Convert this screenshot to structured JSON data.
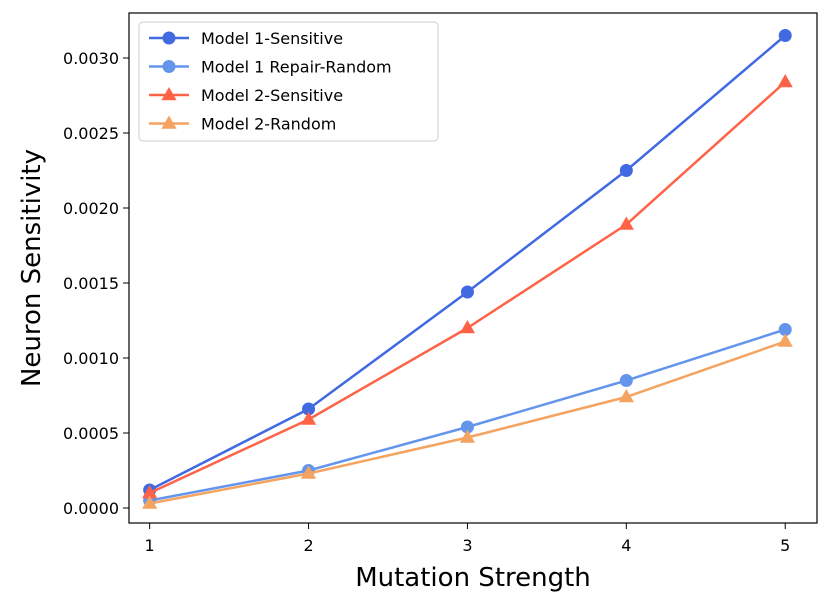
{
  "chart_data": {
    "type": "line",
    "title": "",
    "xlabel": "Mutation Strength",
    "ylabel": "Neuron Sensitivity",
    "x": [
      1,
      2,
      3,
      4,
      5
    ],
    "xticks": [
      "1",
      "2",
      "3",
      "4",
      "5"
    ],
    "yticks": [
      "0.0000",
      "0.0005",
      "0.0010",
      "0.0015",
      "0.0020",
      "0.0025",
      "0.0030"
    ],
    "xlim": [
      0.87,
      5.2
    ],
    "ylim": [
      -0.0001,
      0.0033
    ],
    "grid": false,
    "legend_position": "top-left",
    "series": [
      {
        "name": "Model 1-Sensitive",
        "marker": "circle",
        "color": "#4169E1",
        "values": [
          0.00012,
          0.00066,
          0.00144,
          0.00225,
          0.00315
        ]
      },
      {
        "name": "Model 1 Repair-Random",
        "marker": "circle",
        "color": "#6495ED",
        "values": [
          5e-05,
          0.00025,
          0.00054,
          0.00085,
          0.00119
        ]
      },
      {
        "name": "Model 2-Sensitive",
        "marker": "triangle",
        "color": "#FF6347",
        "values": [
          0.0001,
          0.00059,
          0.0012,
          0.00189,
          0.00284
        ]
      },
      {
        "name": "Model 2-Random",
        "marker": "triangle",
        "color": "#F4A460",
        "values": [
          3e-05,
          0.00023,
          0.00047,
          0.00074,
          0.00111
        ]
      }
    ]
  }
}
